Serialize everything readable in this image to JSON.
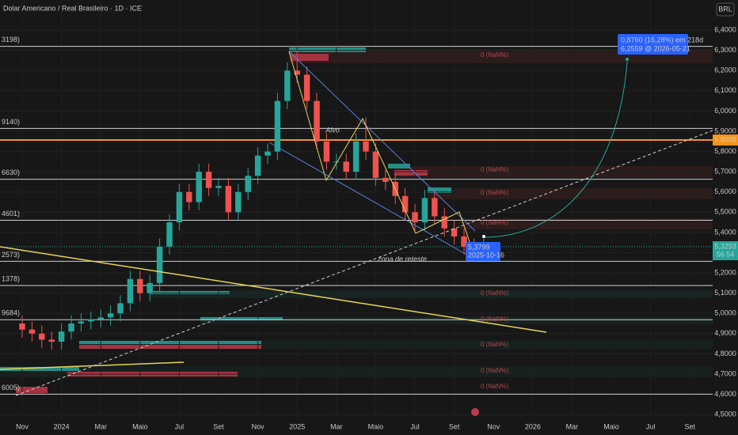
{
  "header": {
    "title": "Dolar Americano / Real Brasileiro · 1D · ICE",
    "currency": "BRL"
  },
  "chart_data": {
    "type": "candlestick",
    "x": [
      0,
      0.5,
      1,
      1.5,
      2,
      2.5,
      3,
      3.5,
      4,
      4.5,
      5,
      5.5,
      6,
      6.5,
      7,
      7.5,
      8,
      8.5,
      9,
      9.5,
      10,
      10.5,
      11,
      11.5,
      12,
      12.5,
      13,
      13.5,
      14,
      14.5,
      15,
      15.5,
      16,
      16.5,
      17,
      17.5,
      18,
      18.5,
      19,
      19.5,
      20,
      20.5,
      21,
      21.5,
      22,
      22.5,
      23,
      23.5
    ],
    "open": [
      4.95,
      4.92,
      4.9,
      4.87,
      4.86,
      4.91,
      4.95,
      4.96,
      4.97,
      4.98,
      5.0,
      5.05,
      5.17,
      5.1,
      5.15,
      5.33,
      5.45,
      5.6,
      5.55,
      5.7,
      5.62,
      5.63,
      5.5,
      5.6,
      5.68,
      5.78,
      5.8,
      6.05,
      6.2,
      6.18,
      6.05,
      5.85,
      5.75,
      5.75,
      5.7,
      5.85,
      5.8,
      5.67,
      5.65,
      5.58,
      5.5,
      5.45,
      5.57,
      5.48,
      5.42,
      5.38,
      5.33,
      5.3
    ],
    "high": [
      4.99,
      4.96,
      4.94,
      4.91,
      4.95,
      4.99,
      5.0,
      5.01,
      5.02,
      5.04,
      5.09,
      5.21,
      5.21,
      5.19,
      5.37,
      5.49,
      5.64,
      5.64,
      5.74,
      5.74,
      5.67,
      5.67,
      5.64,
      5.72,
      5.82,
      5.84,
      6.09,
      6.24,
      6.3,
      6.22,
      6.09,
      5.89,
      5.79,
      5.79,
      5.89,
      5.97,
      5.84,
      5.71,
      5.69,
      5.62,
      5.54,
      5.61,
      5.61,
      5.52,
      5.46,
      5.42,
      5.37,
      5.37
    ],
    "low": [
      4.88,
      4.86,
      4.83,
      4.82,
      4.82,
      4.87,
      4.91,
      4.92,
      4.93,
      4.94,
      4.96,
      5.01,
      5.06,
      5.06,
      5.11,
      5.29,
      5.41,
      5.51,
      5.51,
      5.58,
      5.58,
      5.46,
      5.46,
      5.56,
      5.64,
      5.74,
      5.76,
      6.01,
      6.14,
      6.01,
      5.81,
      5.71,
      5.71,
      5.66,
      5.66,
      5.76,
      5.63,
      5.61,
      5.54,
      5.46,
      5.41,
      5.41,
      5.44,
      5.38,
      5.34,
      5.29,
      5.26,
      5.26
    ],
    "close": [
      4.92,
      4.9,
      4.87,
      4.86,
      4.91,
      4.95,
      4.96,
      4.97,
      4.98,
      5.0,
      5.05,
      5.17,
      5.1,
      5.15,
      5.33,
      5.45,
      5.6,
      5.55,
      5.7,
      5.62,
      5.63,
      5.5,
      5.6,
      5.68,
      5.78,
      5.8,
      6.05,
      6.2,
      6.18,
      6.05,
      5.85,
      5.75,
      5.75,
      5.7,
      5.85,
      5.8,
      5.67,
      5.65,
      5.58,
      5.5,
      5.45,
      5.57,
      5.48,
      5.42,
      5.38,
      5.33,
      5.3,
      5.33
    ],
    "up_color": "#26a69a",
    "down_color": "#ef5350",
    "xlim": [
      -1.13,
      35.16
    ],
    "ylim": [
      4.477,
      6.549
    ],
    "xticks": [
      {
        "value": 0,
        "label": "Nov"
      },
      {
        "value": 2,
        "label": "2024"
      },
      {
        "value": 4,
        "label": "Mar"
      },
      {
        "value": 6,
        "label": "Maio"
      },
      {
        "value": 8,
        "label": "Jul"
      },
      {
        "value": 10,
        "label": "Set"
      },
      {
        "value": 12,
        "label": "Nov"
      },
      {
        "value": 14,
        "label": "2025"
      },
      {
        "value": 16,
        "label": "Mar"
      },
      {
        "value": 18,
        "label": "Maio"
      },
      {
        "value": 20,
        "label": "Jul"
      },
      {
        "value": 22,
        "label": "Set"
      },
      {
        "value": 24,
        "label": "Nov"
      },
      {
        "value": 26,
        "label": "2026"
      },
      {
        "value": 28,
        "label": "Mar"
      },
      {
        "value": 30,
        "label": "Maio"
      },
      {
        "value": 32,
        "label": "Jul"
      },
      {
        "value": 34,
        "label": "Set"
      }
    ],
    "yticks": [
      {
        "value": 6.4,
        "label": "6,4000"
      },
      {
        "value": 6.3,
        "label": "6,3000"
      },
      {
        "value": 6.2,
        "label": "6,2000"
      },
      {
        "value": 6.1,
        "label": "6,1000"
      },
      {
        "value": 6.0,
        "label": "6,0000"
      },
      {
        "value": 5.9,
        "label": "5,9000"
      },
      {
        "value": 5.8,
        "label": "5,8000"
      },
      {
        "value": 5.7,
        "label": "5,7000"
      },
      {
        "value": 5.6,
        "label": "5,6000"
      },
      {
        "value": 5.5,
        "label": "5,5000"
      },
      {
        "value": 5.4,
        "label": "5,4000"
      },
      {
        "value": 5.3,
        "label": "5,3000"
      },
      {
        "value": 5.2,
        "label": "5,2000"
      },
      {
        "value": 5.1,
        "label": "5,1000"
      },
      {
        "value": 5.0,
        "label": "5,0000"
      },
      {
        "value": 4.9,
        "label": "4,9000"
      },
      {
        "value": 4.8,
        "label": "4,8000"
      },
      {
        "value": 4.7,
        "label": "4,7000"
      },
      {
        "value": 4.6,
        "label": "4,6000"
      },
      {
        "value": 4.5,
        "label": "4,5000"
      }
    ],
    "grid": true,
    "levels": [
      {
        "value": 6.3198,
        "label": "3198)"
      },
      {
        "value": 5.914,
        "label": "9140)"
      },
      {
        "value": 5.663,
        "label": "6630)"
      },
      {
        "value": 5.4601,
        "label": "4601)"
      },
      {
        "value": 5.2573,
        "label": "2573)"
      },
      {
        "value": 5.1378,
        "label": "1378)"
      },
      {
        "value": 4.9684,
        "label": "9684)"
      },
      {
        "value": 4.6005,
        "label": "6005)"
      }
    ],
    "level_color": "#d0d0d0",
    "last_price": {
      "value": 5.3293,
      "label": "5,3293"
    },
    "countdown": "56:54",
    "alert_line": {
      "value": 5.8568,
      "label": "5,8568",
      "color": "#f7931a"
    },
    "projection": {
      "start": {
        "value": 5.3799,
        "label": "5,3799"
      },
      "start_date": "2025-10-16",
      "change": "0,8760 (16,28%) em 218d",
      "target": {
        "value": 6.2559,
        "label": "6,2559 @ 2026-05-21"
      }
    },
    "annotations": [
      "Alvo",
      "zona de reteste"
    ],
    "zone_labels": [
      "0 (NaN%)",
      "0 (NaN%)",
      "0 (NaN%)",
      "0 (NaN%)",
      "0 (NaN%)",
      "0 (NaN%)",
      "0 (NaN%)",
      "0 (NaN%)",
      "0 (NaN%)"
    ]
  }
}
